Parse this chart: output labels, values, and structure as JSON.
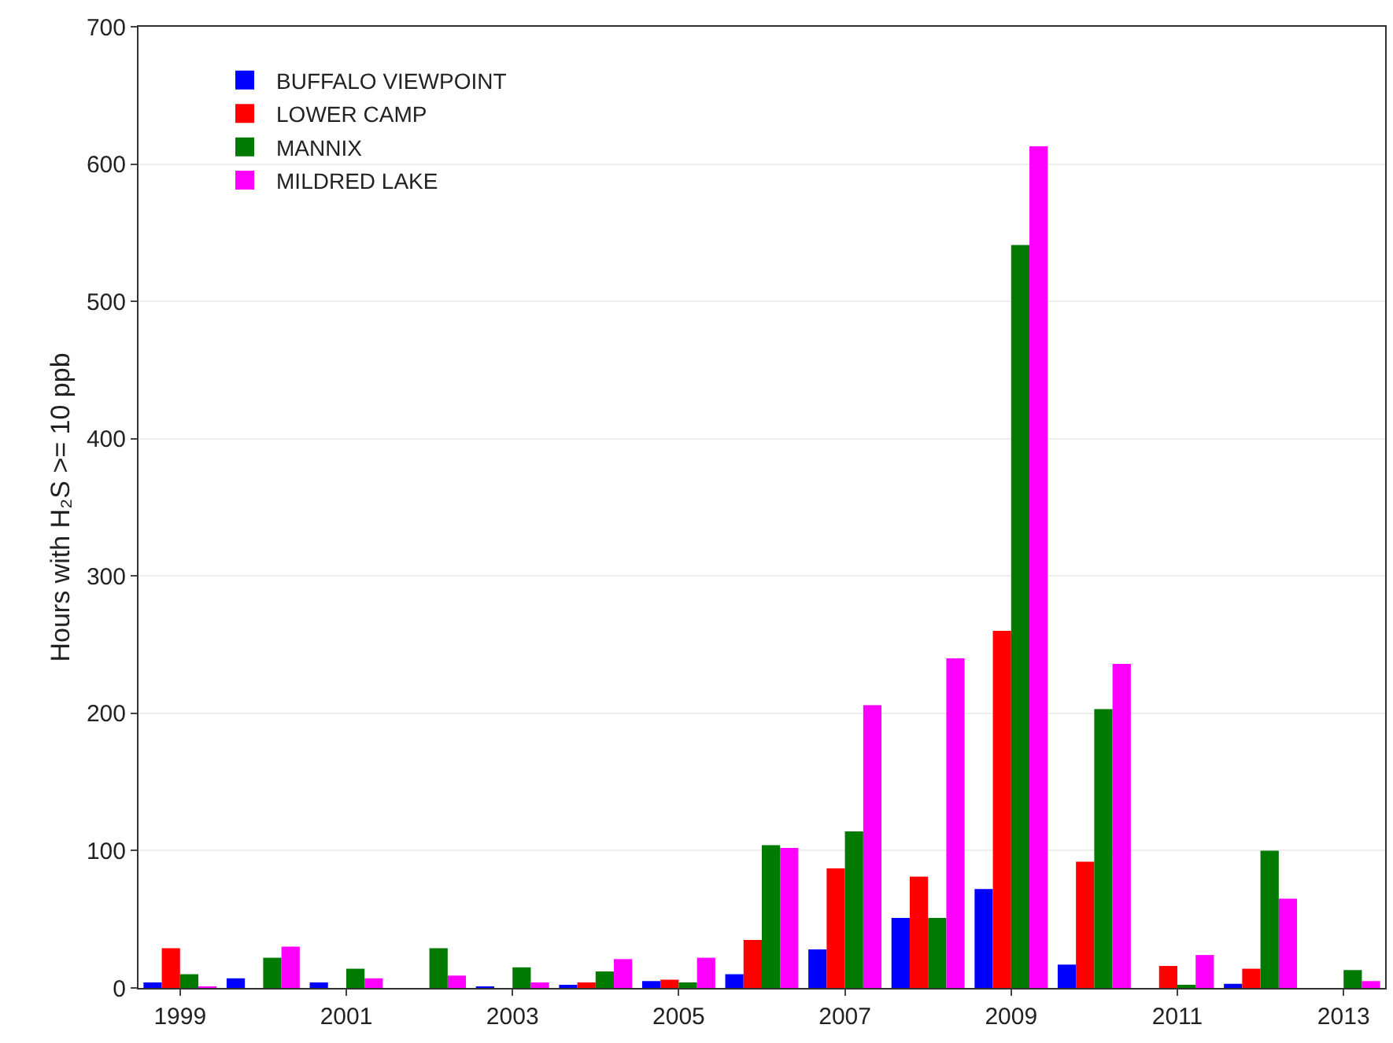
{
  "chart_data": {
    "type": "bar",
    "ylabel": "Hours with H₂S >= 10 ppb",
    "categories": [
      "1999",
      null,
      "2001",
      null,
      "2003",
      null,
      "2005",
      null,
      "2007",
      null,
      "2009",
      null,
      "2011",
      null,
      "2013"
    ],
    "series": [
      {
        "name": "BUFFALO VIEWPOINT",
        "color": "#0000ff",
        "values": [
          4,
          7,
          4,
          0,
          1,
          2,
          5,
          10,
          28,
          51,
          72,
          17,
          0,
          3,
          0
        ]
      },
      {
        "name": "LOWER CAMP",
        "color": "#ff0000",
        "values": [
          29,
          0,
          0,
          0,
          0,
          4,
          6,
          35,
          87,
          81,
          260,
          92,
          16,
          14,
          0
        ]
      },
      {
        "name": "MANNIX",
        "color": "#007a00",
        "values": [
          10,
          22,
          14,
          29,
          15,
          12,
          4,
          104,
          114,
          51,
          541,
          203,
          2,
          100,
          13
        ]
      },
      {
        "name": "MILDRED LAKE",
        "color": "#ff00ff",
        "values": [
          1,
          30,
          7,
          9,
          4,
          21,
          22,
          102,
          206,
          240,
          613,
          236,
          24,
          65,
          5
        ]
      }
    ],
    "ylim": [
      0,
      700
    ],
    "yticks": [
      0,
      100,
      200,
      300,
      400,
      500,
      600,
      700
    ],
    "grid": "y",
    "legend": "top left"
  }
}
